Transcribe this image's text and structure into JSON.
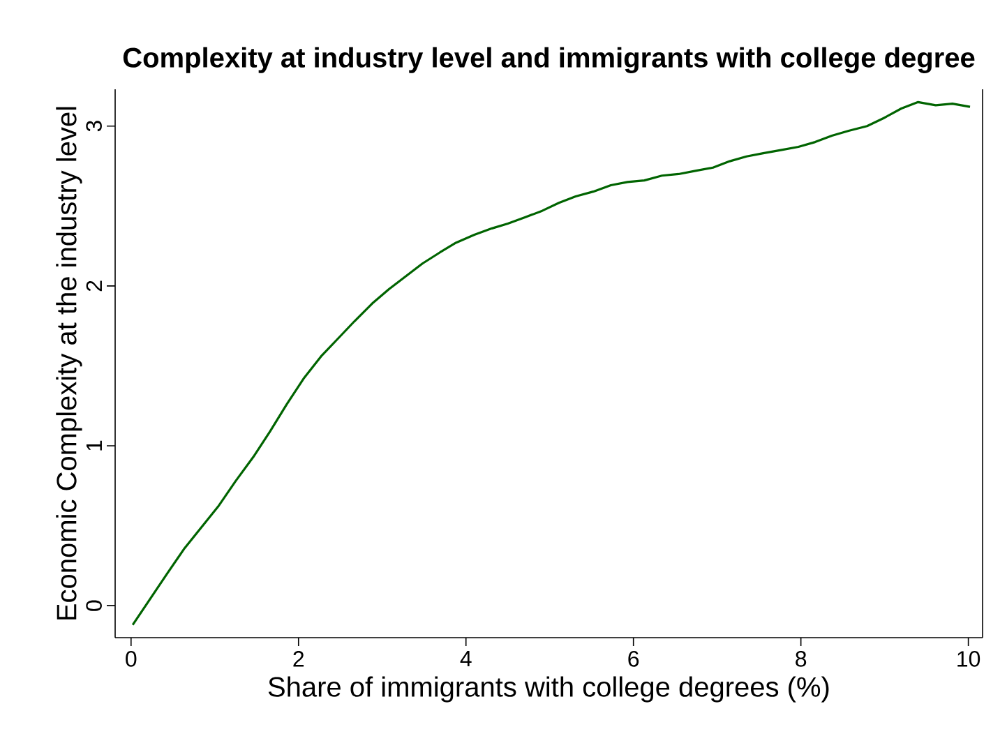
{
  "chart_data": {
    "type": "line",
    "title": "Complexity at industry level and immigrants with college degree",
    "xlabel": "Share of immigrants with college degrees (%)",
    "ylabel": "Economic Complexity at the industry level",
    "x": [
      0.02,
      0.43,
      0.64,
      1.04,
      1.25,
      1.46,
      1.66,
      1.86,
      2.06,
      2.27,
      2.47,
      2.67,
      2.88,
      3.08,
      3.28,
      3.48,
      3.69,
      3.88,
      4.1,
      4.31,
      4.5,
      4.71,
      4.91,
      5.11,
      5.31,
      5.52,
      5.73,
      5.93,
      6.13,
      6.34,
      6.54,
      6.74,
      6.95,
      7.15,
      7.35,
      7.55,
      7.76,
      7.97,
      8.17,
      8.37,
      8.57,
      8.79,
      8.99,
      9.2,
      9.4,
      9.61,
      9.81,
      10.02
    ],
    "series": [
      {
        "color": "#006400",
        "values": [
          -0.12,
          0.2,
          0.36,
          0.62,
          0.78,
          0.93,
          1.09,
          1.26,
          1.42,
          1.56,
          1.67,
          1.78,
          1.89,
          1.98,
          2.06,
          2.14,
          2.21,
          2.27,
          2.32,
          2.36,
          2.39,
          2.43,
          2.47,
          2.52,
          2.56,
          2.59,
          2.63,
          2.65,
          2.66,
          2.69,
          2.7,
          2.72,
          2.74,
          2.78,
          2.81,
          2.83,
          2.85,
          2.87,
          2.9,
          2.94,
          2.97,
          3.0,
          3.05,
          3.11,
          3.15,
          3.13,
          3.14,
          3.12
        ]
      }
    ],
    "xlim": [
      -0.19,
      10.17
    ],
    "ylim": [
      -0.2,
      3.23
    ],
    "xticks": [
      0,
      2,
      4,
      6,
      8,
      10
    ],
    "yticks": [
      0,
      1,
      2,
      3
    ],
    "marker": "none",
    "line_style": "solid"
  }
}
